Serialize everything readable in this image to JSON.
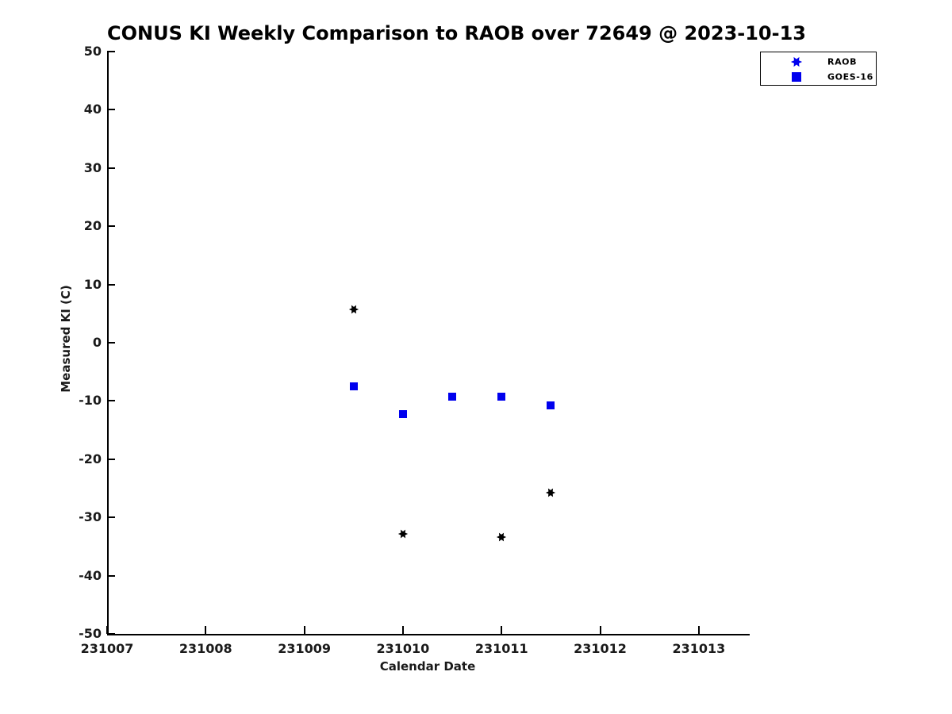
{
  "chart_data": {
    "type": "scatter",
    "title": "CONUS KI Weekly Comparison to RAOB over 72649 @ 2023-10-13",
    "xlabel": "Calendar Date",
    "ylabel": "Measured KI (C)",
    "xlim": [
      231007,
      231013.5
    ],
    "ylim": [
      -50,
      50
    ],
    "x_ticks": [
      231007,
      231008,
      231009,
      231010,
      231011,
      231012,
      231013
    ],
    "x_tick_labels": [
      "231007",
      "231008",
      "231009",
      "231010",
      "231011",
      "231012",
      "231013"
    ],
    "y_ticks": [
      50,
      40,
      30,
      20,
      10,
      0,
      -10,
      -20,
      -30,
      -40,
      -50
    ],
    "y_tick_labels": [
      "50",
      "40",
      "30",
      "20",
      "10",
      "0",
      "-10",
      "-20",
      "-30",
      "-40",
      "-50"
    ],
    "grid": false,
    "legend_position": "outside-top-right",
    "colors": {
      "marker_blue": "#0000ee",
      "marker_black": "#000000",
      "axis": "#000000"
    },
    "series": [
      {
        "name": "RAOB",
        "marker": "hexagram",
        "color": "#000000",
        "legend_marker_color": "#0000ee",
        "points": [
          [
            231009.5,
            5.7
          ],
          [
            231010.0,
            -32.9
          ],
          [
            231011.0,
            -33.4
          ],
          [
            231011.5,
            -25.8
          ]
        ]
      },
      {
        "name": "GOES-16",
        "marker": "square",
        "color": "#0000ee",
        "legend_marker_color": "#0000ee",
        "points": [
          [
            231009.5,
            -7.5
          ],
          [
            231010.0,
            -12.2
          ],
          [
            231010.5,
            -9.2
          ],
          [
            231011.0,
            -9.2
          ],
          [
            231011.5,
            -10.7
          ]
        ]
      }
    ]
  }
}
